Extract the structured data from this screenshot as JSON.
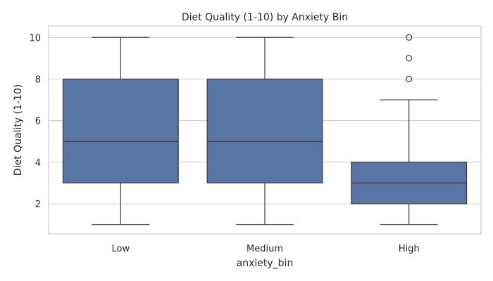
{
  "chart_data": {
    "type": "box",
    "title": "Diet Quality (1-10) by Anxiety Bin",
    "xlabel": "anxiety_bin",
    "ylabel": "Diet Quality (1-10)",
    "ylim": [
      0.55,
      10.55
    ],
    "yticks": [
      2,
      4,
      6,
      8,
      10
    ],
    "grid": "horizontal",
    "categories": [
      "Low",
      "Medium",
      "High"
    ],
    "boxes": [
      {
        "category": "Low",
        "whisker_low": 1,
        "q1": 3,
        "median": 5,
        "q3": 8,
        "whisker_high": 10,
        "outliers": []
      },
      {
        "category": "Medium",
        "whisker_low": 1,
        "q1": 3,
        "median": 5,
        "q3": 8,
        "whisker_high": 10,
        "outliers": []
      },
      {
        "category": "High",
        "whisker_low": 1,
        "q1": 2,
        "median": 3,
        "q3": 4,
        "whisker_high": 7,
        "outliers": [
          8,
          9,
          10
        ]
      }
    ],
    "colors": {
      "box_fill": "#5975a4",
      "line": "#3c3c3c",
      "grid": "#cccccc",
      "frame": "#cccccc",
      "text": "#262626"
    }
  }
}
